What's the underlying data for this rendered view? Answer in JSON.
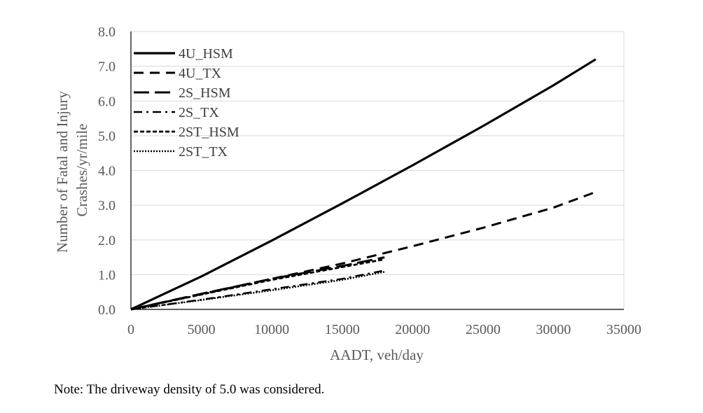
{
  "chart_data": {
    "type": "line",
    "title": "",
    "xlabel": "AADT, veh/day",
    "ylabel_lines": [
      "Number of Fatal and Injury",
      "Crashes/yr/mile"
    ],
    "xlim": [
      0,
      35000
    ],
    "ylim": [
      0,
      8
    ],
    "x_ticks": [
      0,
      5000,
      10000,
      15000,
      20000,
      25000,
      30000,
      35000
    ],
    "x_tick_labels": [
      "0",
      "5000",
      "10000",
      "15000",
      "20000",
      "25000",
      "30000",
      "35000"
    ],
    "y_ticks": [
      0,
      1,
      2,
      3,
      4,
      5,
      6,
      7,
      8
    ],
    "y_tick_labels": [
      "0.0",
      "1.0",
      "2.0",
      "3.0",
      "4.0",
      "5.0",
      "6.0",
      "7.0",
      "8.0"
    ],
    "grid": "horizontal",
    "legend_position": "top-left",
    "series": [
      {
        "name": "4U_HSM",
        "style": "solid",
        "color": "#000000",
        "x": [
          0,
          5000,
          10000,
          15000,
          20000,
          25000,
          30000,
          33000
        ],
        "y": [
          0.0,
          0.95,
          1.98,
          3.05,
          4.15,
          5.28,
          6.45,
          7.2
        ]
      },
      {
        "name": "4U_TX",
        "style": "dash",
        "color": "#000000",
        "x": [
          0,
          5000,
          10000,
          15000,
          18000,
          20000,
          25000,
          30000,
          33000
        ],
        "y": [
          0.0,
          0.44,
          0.88,
          1.32,
          1.62,
          1.82,
          2.35,
          2.93,
          3.38
        ]
      },
      {
        "name": "2S_HSM",
        "style": "longdash",
        "color": "#000000",
        "x": [
          0,
          5000,
          10000,
          15000,
          18000
        ],
        "y": [
          0.0,
          0.45,
          0.88,
          1.25,
          1.5
        ]
      },
      {
        "name": "2S_TX",
        "style": "dashdot",
        "color": "#000000",
        "x": [
          0,
          5000,
          10000,
          15000,
          18000
        ],
        "y": [
          0.0,
          0.28,
          0.58,
          0.88,
          1.12
        ]
      },
      {
        "name": "2ST_HSM",
        "style": "shortdash",
        "color": "#000000",
        "x": [
          0,
          5000,
          10000,
          15000,
          18000
        ],
        "y": [
          0.0,
          0.43,
          0.85,
          1.22,
          1.44
        ]
      },
      {
        "name": "2ST_TX",
        "style": "dot",
        "color": "#000000",
        "x": [
          0,
          5000,
          10000,
          15000,
          18000
        ],
        "y": [
          0.0,
          0.27,
          0.55,
          0.85,
          1.08
        ]
      }
    ]
  },
  "note": "Note: The driveway density of 5.0 was considered."
}
